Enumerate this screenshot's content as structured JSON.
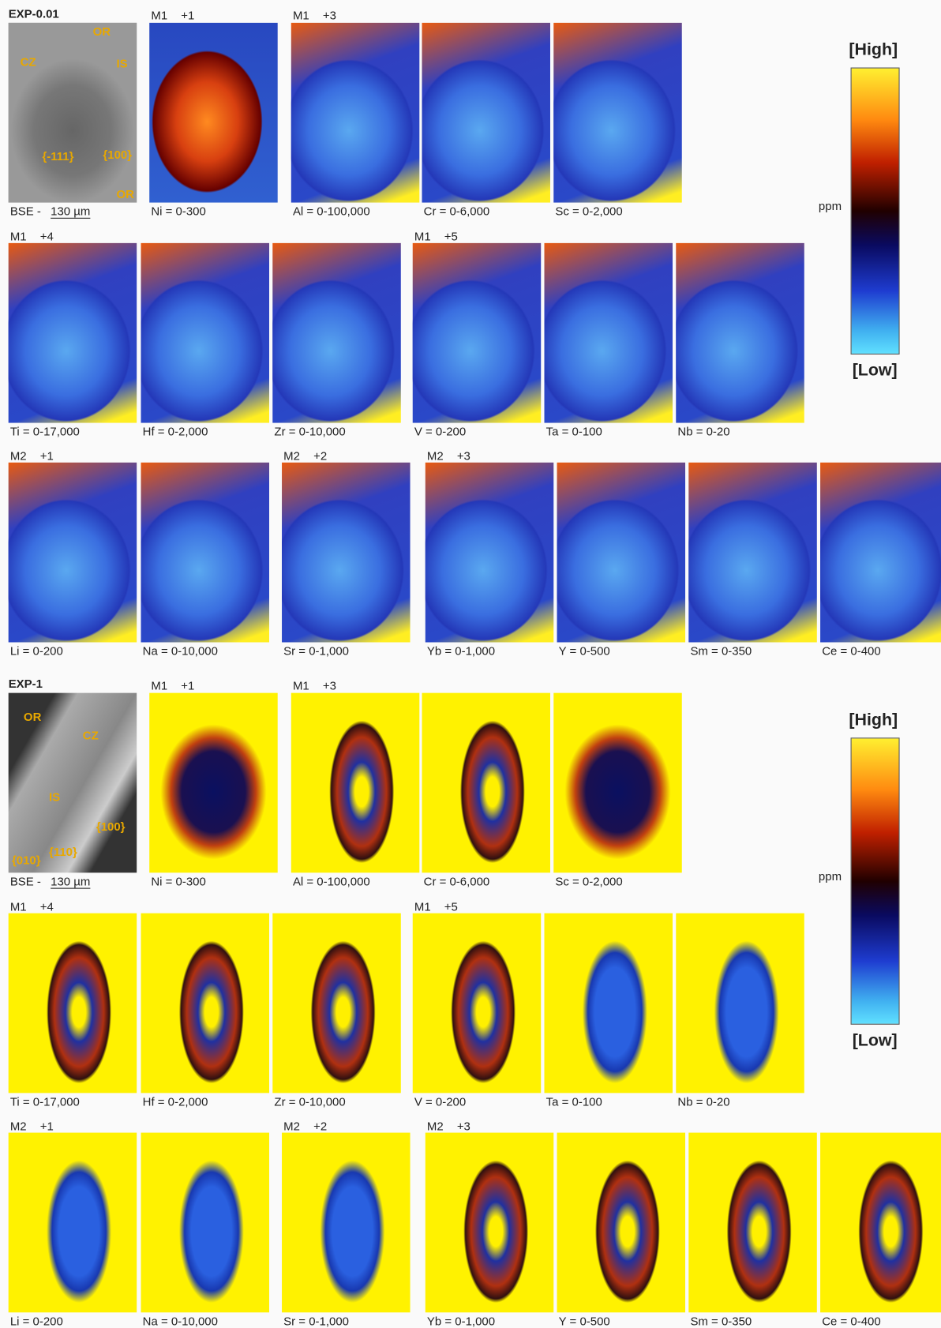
{
  "sections": [
    {
      "title": "EXP-0.01",
      "bse": {
        "label": "BSE - ",
        "scale": "130 µm",
        "annotations": [
          "OR",
          "CZ",
          "IS",
          "{-111}",
          "{100}",
          "OR"
        ]
      },
      "rows": [
        [
          {
            "label": "M1",
            "charge": "+1",
            "maps": [
              "Ni = 0-300"
            ]
          },
          {
            "label": "M1",
            "charge": "+3",
            "maps": [
              "Al = 0-100,000",
              "Cr = 0-6,000",
              "Sc = 0-2,000"
            ]
          }
        ],
        [
          {
            "label": "M1",
            "charge": "+4",
            "maps": [
              "Ti = 0-17,000",
              "Hf = 0-2,000",
              "Zr = 0-10,000"
            ]
          },
          {
            "label": "M1",
            "charge": "+5",
            "maps": [
              "V = 0-200",
              "Ta = 0-100",
              "Nb = 0-20"
            ]
          }
        ],
        [
          {
            "label": "M2",
            "charge": "+1",
            "maps": [
              "Li = 0-200",
              "Na = 0-10,000"
            ]
          },
          {
            "label": "M2",
            "charge": "+2",
            "maps": [
              "Sr = 0-1,000"
            ]
          },
          {
            "label": "M2",
            "charge": "+3",
            "maps": [
              "Yb = 0-1,000",
              "Y = 0-500",
              "Sm = 0-350",
              "Ce = 0-400"
            ]
          }
        ]
      ],
      "colorbar": {
        "high": "[High]",
        "unit": "ppm",
        "low": "[Low]"
      }
    },
    {
      "title": "EXP-1",
      "bse": {
        "label": "BSE - ",
        "scale": "130 µm",
        "annotations": [
          "OR",
          "CZ",
          "IS",
          "{010}",
          "{110}",
          "{100}"
        ]
      },
      "rows": [
        [
          {
            "label": "M1",
            "charge": "+1",
            "maps": [
              "Ni = 0-300"
            ]
          },
          {
            "label": "M1",
            "charge": "+3",
            "maps": [
              "Al = 0-100,000",
              "Cr = 0-6,000",
              "Sc = 0-2,000"
            ]
          }
        ],
        [
          {
            "label": "M1",
            "charge": "+4",
            "maps": [
              "Ti = 0-17,000",
              "Hf = 0-2,000",
              "Zr = 0-10,000"
            ]
          },
          {
            "label": "M1",
            "charge": "+5",
            "maps": [
              "V = 0-200",
              "Ta = 0-100",
              "Nb = 0-20"
            ]
          }
        ],
        [
          {
            "label": "M2",
            "charge": "+1",
            "maps": [
              "Li = 0-200",
              "Na = 0-10,000"
            ]
          },
          {
            "label": "M2",
            "charge": "+2",
            "maps": [
              "Sr = 0-1,000"
            ]
          },
          {
            "label": "M2",
            "charge": "+3",
            "maps": [
              "Yb = 0-1,000",
              "Y = 0-500",
              "Sm = 0-350",
              "Ce = 0-400"
            ]
          }
        ]
      ],
      "colorbar": {
        "high": "[High]",
        "unit": "ppm",
        "low": "[Low]"
      }
    }
  ]
}
